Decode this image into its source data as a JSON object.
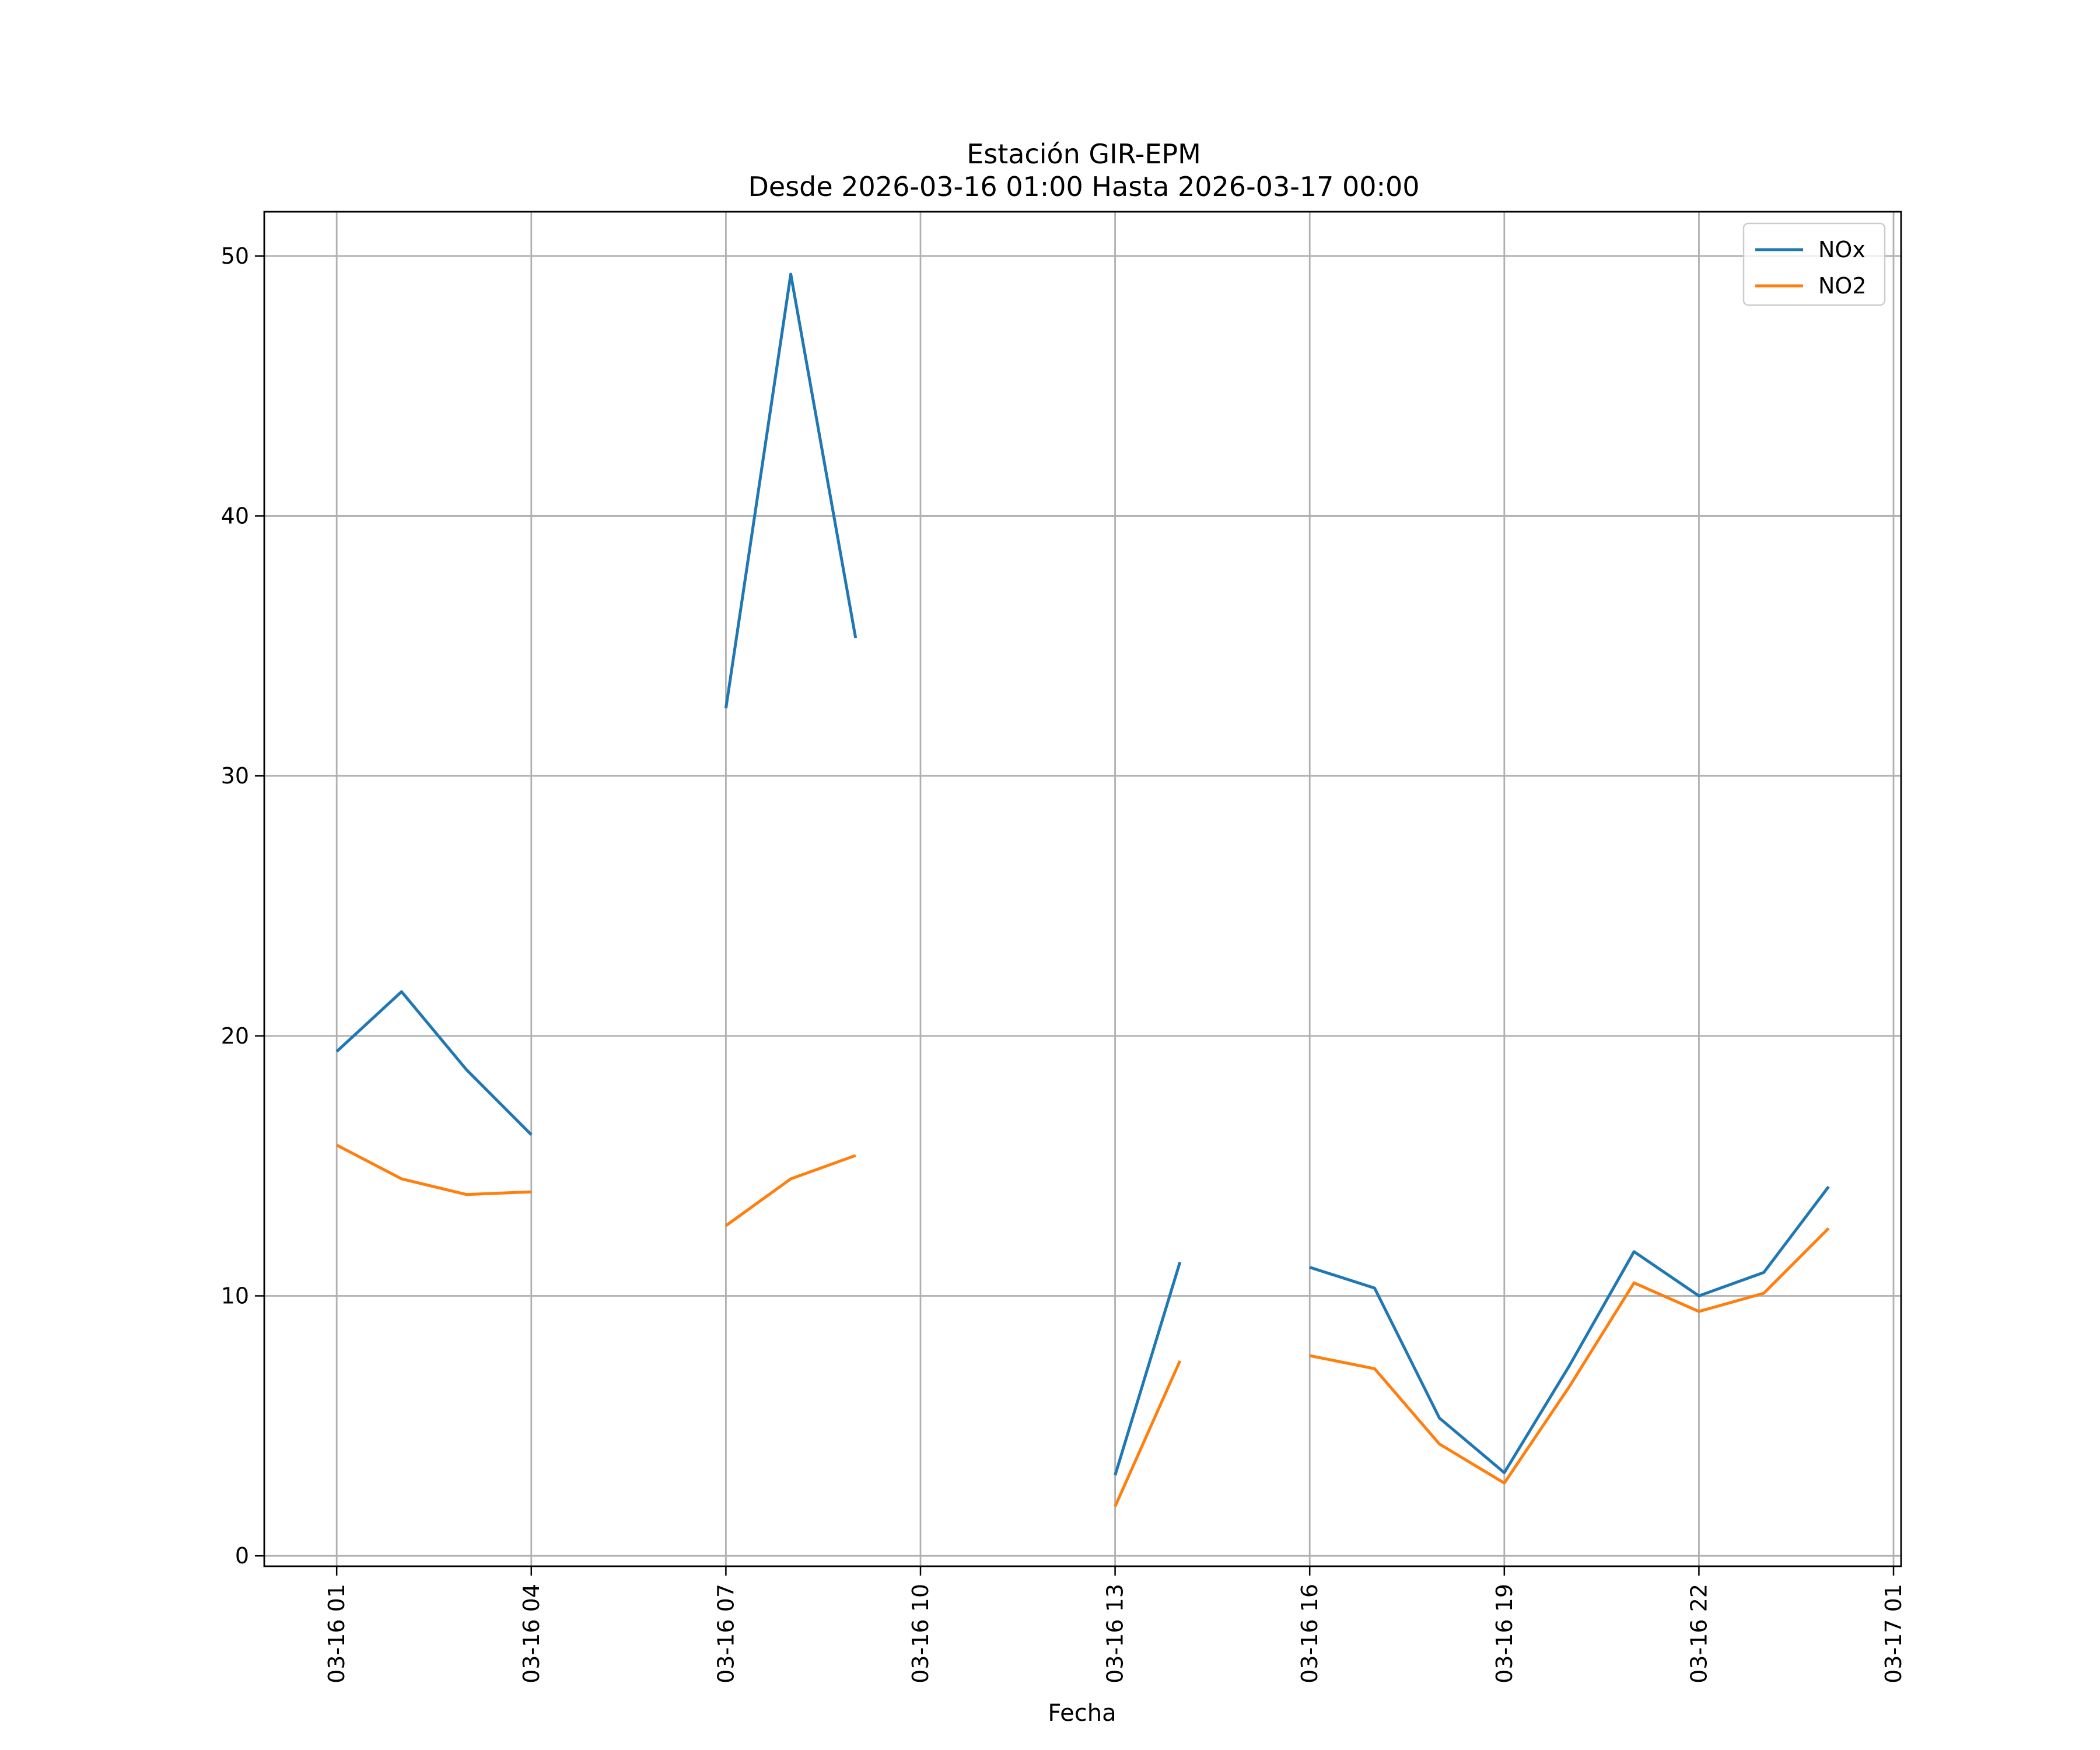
{
  "chart_data": {
    "type": "line",
    "title": "Estación GIR-EPM",
    "subtitle": "Desde 2026-03-16 01:00 Hasta 2026-03-17 00:00",
    "xlabel": "Fecha",
    "ylabel": "",
    "x_ticks": [
      "03-16 01",
      "03-16 04",
      "03-16 07",
      "03-16 10",
      "03-16 13",
      "03-16 16",
      "03-16 19",
      "03-16 22",
      "03-17 01"
    ],
    "y_ticks": [
      "0",
      "10",
      "20",
      "30",
      "40",
      "50"
    ],
    "ylim": [
      -0.4,
      51.7
    ],
    "xlim": [
      "2026-03-15 23:53",
      "2026-03-17 01:07"
    ],
    "x": [
      "2026-03-16 01:00",
      "2026-03-16 02:00",
      "2026-03-16 03:00",
      "2026-03-16 04:00",
      "2026-03-16 05:00",
      "2026-03-16 06:00",
      "2026-03-16 07:00",
      "2026-03-16 08:00",
      "2026-03-16 09:00",
      "2026-03-16 10:00",
      "2026-03-16 11:00",
      "2026-03-16 12:00",
      "2026-03-16 13:00",
      "2026-03-16 14:00",
      "2026-03-16 15:00",
      "2026-03-16 16:00",
      "2026-03-16 17:00",
      "2026-03-16 18:00",
      "2026-03-16 19:00",
      "2026-03-16 20:00",
      "2026-03-16 21:00",
      "2026-03-16 22:00",
      "2026-03-16 23:00",
      "2026-03-17 00:00"
    ],
    "series": [
      {
        "name": "NOx",
        "color": "#1f77b4",
        "values": [
          19.4,
          21.7,
          18.7,
          16.2,
          null,
          null,
          32.6,
          49.3,
          35.3,
          null,
          null,
          null,
          3.1,
          11.3,
          null,
          11.1,
          10.3,
          5.3,
          3.2,
          7.3,
          11.7,
          10.0,
          10.9,
          14.2
        ]
      },
      {
        "name": "NO2",
        "color": "#ff7f0e",
        "values": [
          15.8,
          14.5,
          13.9,
          14.0,
          null,
          null,
          12.7,
          14.5,
          15.4,
          null,
          null,
          null,
          1.9,
          7.5,
          null,
          7.7,
          7.2,
          4.3,
          2.8,
          6.5,
          10.5,
          9.4,
          10.1,
          12.6
        ]
      }
    ],
    "grid": true,
    "legend": "top-right"
  }
}
